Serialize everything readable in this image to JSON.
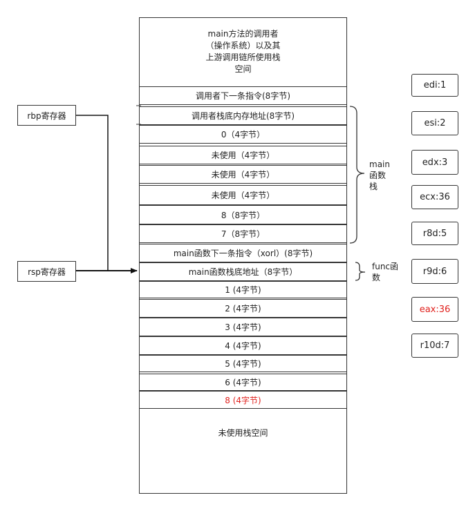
{
  "stack": {
    "header": "main方法的调用者\n（操作系统）以及其\n上游调用链所使用栈\n空间",
    "rows": [
      {
        "label": "调用者下一条指令(8字节)",
        "red": false
      },
      {
        "label": "调用者栈底内存地址(8字节)",
        "red": false
      },
      {
        "label": "0（4字节）",
        "red": false
      },
      {
        "label": "未使用（4字节）",
        "red": false
      },
      {
        "label": "未使用（4字节）",
        "red": false
      },
      {
        "label": "未使用（4字节）",
        "red": false
      },
      {
        "label": "8（8字节）",
        "red": false
      },
      {
        "label": "7（8字节）",
        "red": false
      },
      {
        "label": "main函数下一条指令（xorl）(8字节)",
        "red": false
      },
      {
        "label": "main函数栈底地址（8字节）",
        "red": false
      },
      {
        "label": "1 (4字节)",
        "red": false
      },
      {
        "label": "2 (4字节)",
        "red": false
      },
      {
        "label": "3 (4字节)",
        "red": false
      },
      {
        "label": "4 (4字节)",
        "red": false
      },
      {
        "label": "5 (4字节)",
        "red": false
      },
      {
        "label": "6 (4字节)",
        "red": false
      },
      {
        "label": "8 (4字节)",
        "red": true
      }
    ],
    "footer": "未使用栈空间"
  },
  "pointers": {
    "rbp": "rbp寄存器",
    "rsp": "rsp寄存器"
  },
  "brace_labels": {
    "main": "main\n函数\n栈",
    "func": "func函\n数"
  },
  "registers": [
    {
      "label": "edi:1",
      "red": false
    },
    {
      "label": "esi:2",
      "red": false
    },
    {
      "label": "edx:3",
      "red": false
    },
    {
      "label": "ecx:36",
      "red": false
    },
    {
      "label": "r8d:5",
      "red": false
    },
    {
      "label": "r9d:6",
      "red": false
    },
    {
      "label": "eax:36",
      "red": true
    },
    {
      "label": "r10d:7",
      "red": false
    }
  ],
  "colors": {
    "red": "#e0201c",
    "line": "#333333"
  }
}
